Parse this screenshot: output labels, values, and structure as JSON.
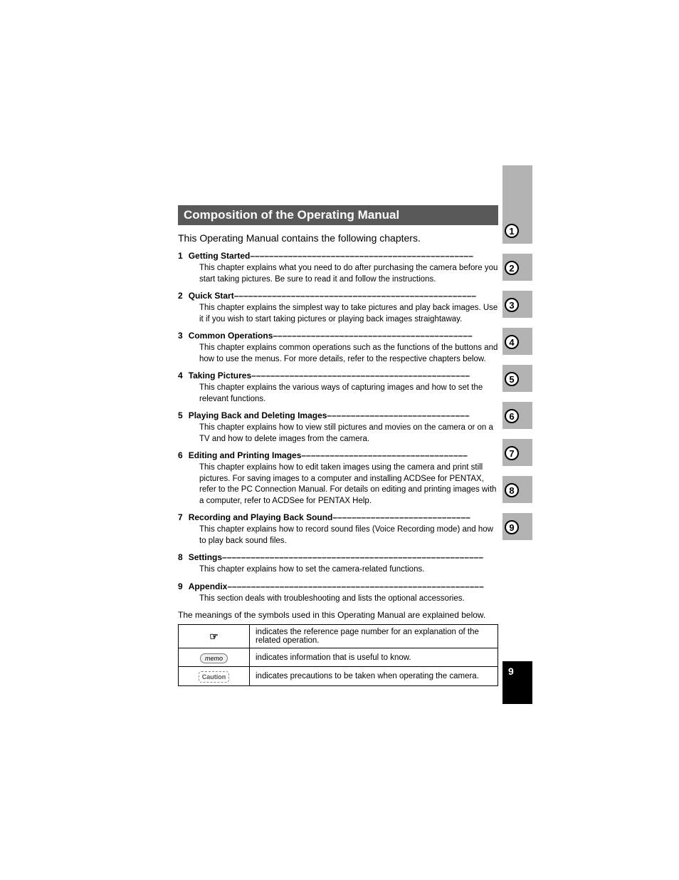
{
  "title": "Composition of the Operating Manual",
  "intro": "This Operating Manual contains the following chapters.",
  "chapters": [
    {
      "num": "1",
      "title": "Getting Started",
      "fill": " –––––––––––––––––––––––––––––––––––––––––––––––",
      "desc": "This chapter explains what you need to do after purchasing the camera before you start taking pictures. Be sure to read it and follow the instructions."
    },
    {
      "num": "2",
      "title": "Quick Start",
      "fill": "  –––––––––––––––––––––––––––––––––––––––––––––––––––",
      "desc": "This chapter explains the simplest way to take pictures and play back images. Use it if you wish to start taking pictures or playing back images straightaway."
    },
    {
      "num": "3",
      "title": "Common Operations",
      "fill": " ––––––––––––––––––––––––––––––––––––––––––",
      "desc": "This chapter explains common operations such as the functions of the buttons and how to use the menus. For more details, refer to the respective chapters below."
    },
    {
      "num": "4",
      "title": "Taking Pictures",
      "fill": "  ––––––––––––––––––––––––––––––––––––––––––––––",
      "desc": "This chapter explains the various ways of capturing images and how to set the relevant functions."
    },
    {
      "num": "5",
      "title": "Playing Back and Deleting Images",
      "fill": "––––––––––––––––––––––––––––––",
      "desc": "This chapter explains how to view still pictures and movies on the camera or on a TV and how to delete images from the camera."
    },
    {
      "num": "6",
      "title": "Editing and Printing Images",
      "fill": " –––––––––––––––––––––––––––––––––––",
      "desc": "This chapter explains how to edit taken images using the camera and print still pictures. For saving images to a computer and installing ACDSee for PENTAX, refer to the PC Connection Manual. For details on editing and printing images with a computer, refer to ACDSee for PENTAX Help."
    },
    {
      "num": "7",
      "title": "Recording and Playing Back Sound",
      "fill": "–––––––––––––––––––––––––––––",
      "desc": "This chapter explains how to record sound files (Voice Recording mode) and how to play back sound files."
    },
    {
      "num": "8",
      "title": "Settings",
      "fill": " –––––––––––––––––––––––––––––––––––––––––––––––––––––––",
      "desc": "This chapter explains how to set the camera-related functions."
    },
    {
      "num": "9",
      "title": "Appendix",
      "fill": "––––––––––––––––––––––––––––––––––––––––––––––––––––––",
      "desc": "This section deals with troubleshooting and lists the optional accessories."
    }
  ],
  "symbols_intro": "The meanings of the symbols used in this Operating Manual are explained below.",
  "symbols": [
    {
      "icon": "☞",
      "icon_type": "reference",
      "desc": "indicates the reference page number for an explanation of the related operation."
    },
    {
      "icon": "memo",
      "icon_type": "memo",
      "desc": "indicates information that is useful to know."
    },
    {
      "icon": "Caution",
      "icon_type": "caution",
      "desc": "indicates precautions to be taken when operating the camera."
    }
  ],
  "tabs": [
    "1",
    "2",
    "3",
    "4",
    "5",
    "6",
    "7",
    "8",
    "9"
  ],
  "page_number": "9",
  "colors": {
    "title_bg": "#595959",
    "title_fg": "#ffffff",
    "tab_bg": "#b3b3b3",
    "pagenum_bg": "#000000",
    "pagenum_fg": "#ffffff",
    "text": "#000000"
  }
}
